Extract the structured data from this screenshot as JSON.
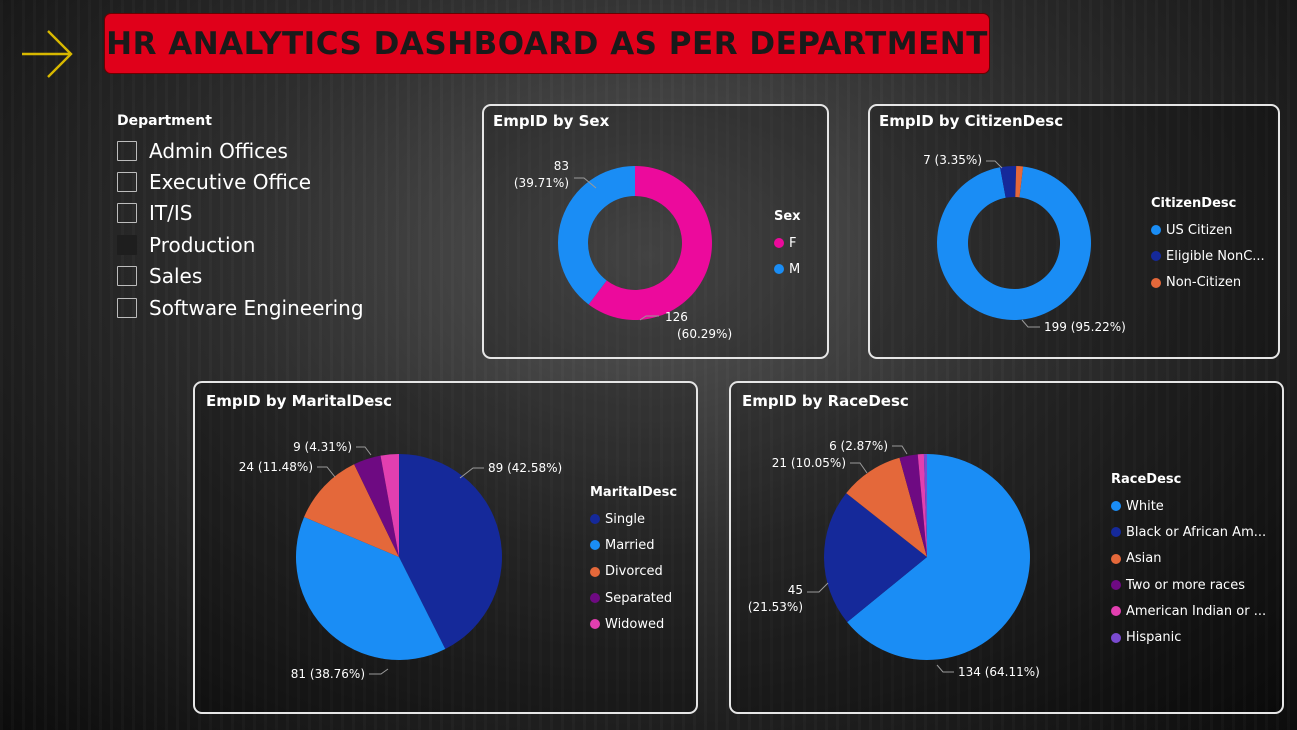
{
  "title": "HR ANALYTICS DASHBOARD AS PER DEPARTMENT",
  "icons": {
    "arrow": "arrow-right-icon"
  },
  "colors": {
    "banner": "#e0001a",
    "female": "#ec0a9c",
    "male": "#1a8df5",
    "us_citizen": "#1a8df5",
    "eligible_noncitizen": "#15299a",
    "non_citizen": "#e4683a",
    "single": "#15299a",
    "married": "#1a8df5",
    "divorced": "#e4683a",
    "separated": "#6e0a82",
    "widowed": "#e23fb0",
    "white": "#1a8df5",
    "black": "#15299a",
    "asian": "#e4683a",
    "two_or_more": "#6e0a82",
    "american_indian": "#e23fb0",
    "hispanic": "#7a4ad0"
  },
  "slicer": {
    "title": "Department",
    "items": [
      {
        "label": "Admin Offices",
        "selected": false
      },
      {
        "label": "Executive Office",
        "selected": false
      },
      {
        "label": "IT/IS",
        "selected": false
      },
      {
        "label": "Production",
        "selected": true
      },
      {
        "label": "Sales",
        "selected": false
      },
      {
        "label": "Software Engineering",
        "selected": false
      }
    ]
  },
  "charts": {
    "sex": {
      "title": "EmpID by Sex",
      "legend_title": "Sex",
      "legend": [
        "F",
        "M"
      ],
      "labels": {
        "m_value": "83",
        "m_pct": "(39.71%)",
        "f_value": "126",
        "f_pct": "(60.29%)"
      }
    },
    "citizen": {
      "title": "EmpID by CitizenDesc",
      "legend_title": "CitizenDesc",
      "legend": [
        "US Citizen",
        "Eligible NonC...",
        "Non-Citizen"
      ],
      "labels": {
        "small": "7 (3.35%)",
        "large": "199 (95.22%)"
      }
    },
    "marital": {
      "title": "EmpID by MaritalDesc",
      "legend_title": "MaritalDesc",
      "legend": [
        "Single",
        "Married",
        "Divorced",
        "Separated",
        "Widowed"
      ],
      "labels": {
        "single": "89 (42.58%)",
        "married": "81 (38.76%)",
        "divorced": "24 (11.48%)",
        "separated": "9 (4.31%)"
      }
    },
    "race": {
      "title": "EmpID by RaceDesc",
      "legend_title": "RaceDesc",
      "legend": [
        "White",
        "Black or African Am...",
        "Asian",
        "Two or more races",
        "American Indian or ...",
        "Hispanic"
      ],
      "labels": {
        "white": "134 (64.11%)",
        "black_value": "45",
        "black_pct": "(21.53%)",
        "asian": "21 (10.05%)",
        "two": "6 (2.87%)"
      }
    }
  },
  "chart_data": [
    {
      "type": "pie",
      "title": "EmpID by Sex",
      "categories": [
        "F",
        "M"
      ],
      "values": [
        126,
        83
      ],
      "percentages": [
        60.29,
        39.71
      ],
      "donut": true
    },
    {
      "type": "pie",
      "title": "EmpID by CitizenDesc",
      "categories": [
        "US Citizen",
        "Eligible NonCitizen",
        "Non-Citizen"
      ],
      "values": [
        199,
        7,
        3
      ],
      "percentages": [
        95.22,
        3.35,
        1.43
      ],
      "donut": true
    },
    {
      "type": "pie",
      "title": "EmpID by MaritalDesc",
      "categories": [
        "Single",
        "Married",
        "Divorced",
        "Separated",
        "Widowed"
      ],
      "values": [
        89,
        81,
        24,
        9,
        6
      ],
      "percentages": [
        42.58,
        38.76,
        11.48,
        4.31,
        2.87
      ]
    },
    {
      "type": "pie",
      "title": "EmpID by RaceDesc",
      "categories": [
        "White",
        "Black or African American",
        "Asian",
        "Two or more races",
        "American Indian or Alaska Native",
        "Hispanic"
      ],
      "values": [
        134,
        45,
        21,
        6,
        2,
        1
      ],
      "percentages": [
        64.11,
        21.53,
        10.05,
        2.87,
        0.96,
        0.48
      ]
    }
  ]
}
